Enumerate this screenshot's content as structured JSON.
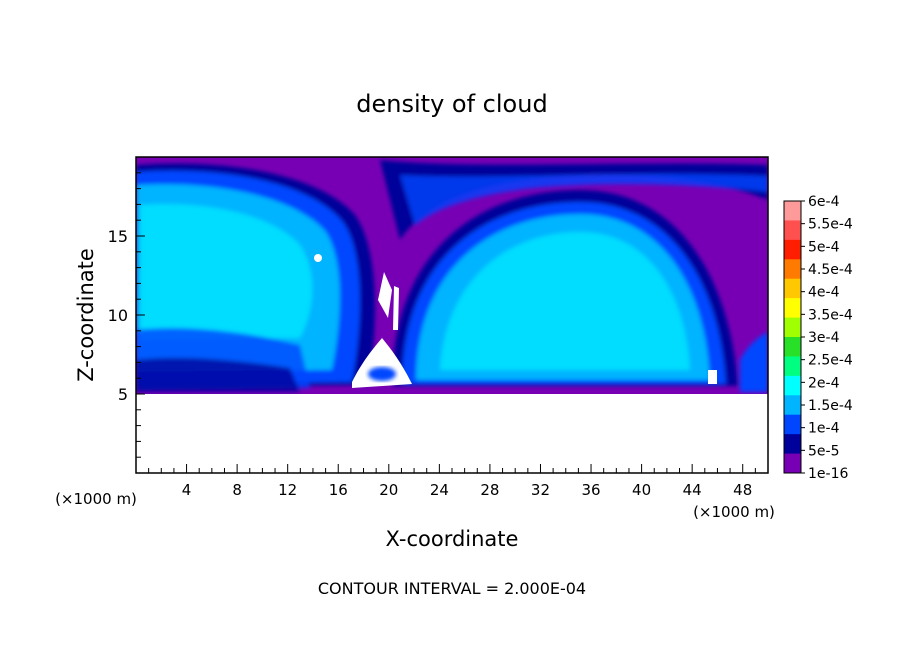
{
  "chart_data": {
    "type": "heatmap",
    "title": "density of cloud",
    "xlabel": "X-coordinate",
    "ylabel": "Z-coordinate",
    "x_unit": "(×1000 m)",
    "y_unit": "(×1000 m)",
    "xlim": [
      0,
      50
    ],
    "ylim": [
      0,
      20
    ],
    "x_ticks": [
      4,
      8,
      12,
      16,
      20,
      24,
      28,
      32,
      36,
      40,
      44,
      48
    ],
    "y_ticks": [
      5,
      10,
      15
    ],
    "footer": "CONTOUR INTERVAL = 2.000E-04",
    "colorbar": {
      "labels": [
        "6e-4",
        "5.5e-4",
        "5e-4",
        "4.5e-4",
        "4e-4",
        "3.5e-4",
        "3e-4",
        "2.5e-4",
        "2e-4",
        "1.5e-4",
        "1e-4",
        "5e-5",
        "1e-16"
      ],
      "colors": [
        "#ff9a9a",
        "#ff5050",
        "#ff1e00",
        "#ff7a00",
        "#ffc800",
        "#ffff00",
        "#a0ff00",
        "#28e028",
        "#00ff80",
        "#00ffff",
        "#00b4ff",
        "#0046ff",
        "#00009a",
        "#7800b4"
      ]
    }
  }
}
